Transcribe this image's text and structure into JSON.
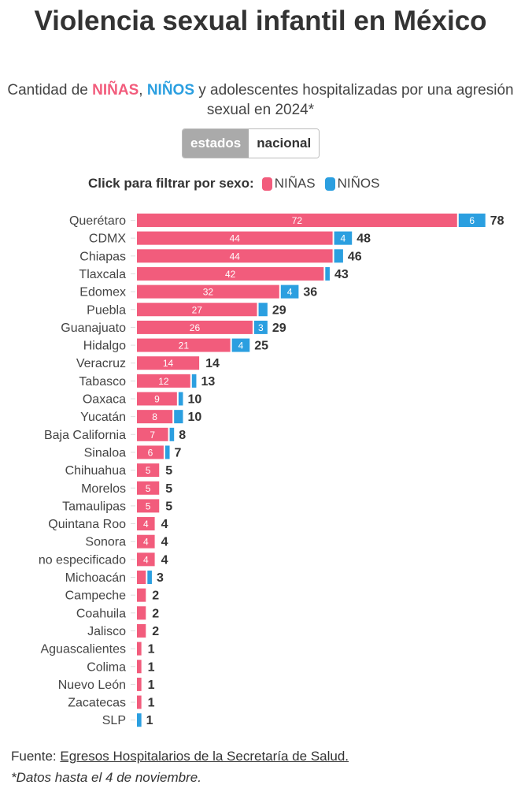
{
  "title": "Violencia sexual infantil en México",
  "subtitle": {
    "pre": "Cantidad de ",
    "ninas": "NIÑAS",
    "sep": ", ",
    "ninos": "NIÑOS",
    "post": " y adolescentes hospitalizadas por una agresión sexual en 2024*"
  },
  "toggle": {
    "estados": "estados",
    "nacional": "nacional"
  },
  "legend": {
    "label": "Click para filtrar por sexo:",
    "ninas": "NIÑAS",
    "ninos": "NIÑOS"
  },
  "colors": {
    "ninas": "#f25c7c",
    "ninos": "#2b9fe0"
  },
  "footer": {
    "source_label": "Fuente: ",
    "source_link": "Egresos Hospitalarios de la Secretaría de Salud.",
    "note": "*Datos hasta el 4 de noviembre."
  },
  "chart_data": {
    "type": "bar",
    "orientation": "horizontal",
    "stacked": true,
    "categories": [
      "Querétaro",
      "CDMX",
      "Chiapas",
      "Tlaxcala",
      "Edomex",
      "Puebla",
      "Guanajuato",
      "Hidalgo",
      "Veracruz",
      "Tabasco",
      "Oaxaca",
      "Yucatán",
      "Baja California",
      "Sinaloa",
      "Chihuahua",
      "Morelos",
      "Tamaulipas",
      "Quintana Roo",
      "Sonora",
      "no especificado",
      "Michoacán",
      "Campeche",
      "Coahuila",
      "Jalisco",
      "Aguascalientes",
      "Colima",
      "Nuevo León",
      "Zacatecas",
      "SLP"
    ],
    "series": [
      {
        "name": "NIÑAS",
        "values": [
          72,
          44,
          44,
          42,
          32,
          27,
          26,
          21,
          14,
          12,
          9,
          8,
          7,
          6,
          5,
          5,
          5,
          4,
          4,
          4,
          2,
          2,
          2,
          2,
          1,
          1,
          1,
          1,
          0
        ]
      },
      {
        "name": "NIÑOS",
        "values": [
          6,
          4,
          2,
          1,
          4,
          2,
          3,
          4,
          0,
          1,
          1,
          2,
          1,
          1,
          0,
          0,
          0,
          0,
          0,
          0,
          1,
          0,
          0,
          0,
          0,
          0,
          0,
          0,
          1
        ]
      }
    ],
    "totals": [
      78,
      48,
      46,
      43,
      36,
      29,
      29,
      25,
      14,
      13,
      10,
      10,
      8,
      7,
      5,
      5,
      5,
      4,
      4,
      4,
      3,
      2,
      2,
      2,
      1,
      1,
      1,
      1,
      1
    ],
    "xlim": [
      0,
      78
    ]
  }
}
